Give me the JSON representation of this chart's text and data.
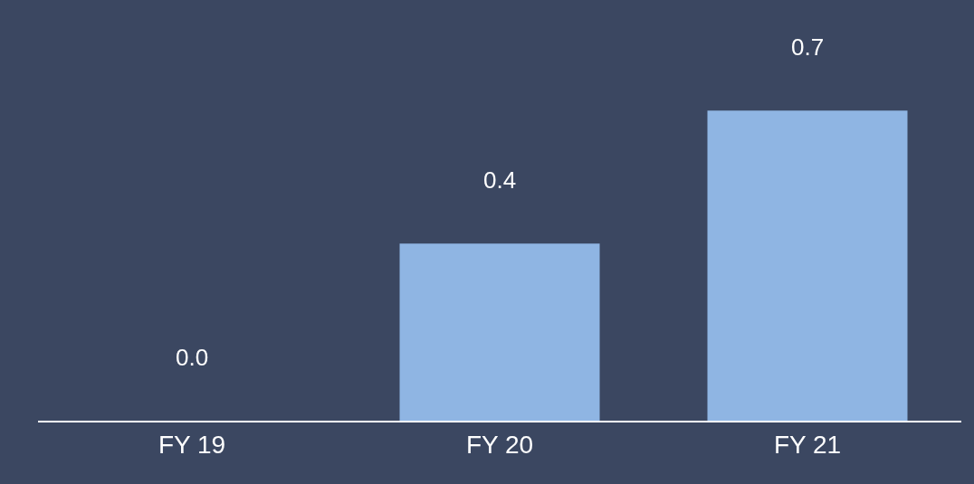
{
  "chart_data": {
    "type": "bar",
    "categories": [
      "FY 19",
      "FY 20",
      "FY 21"
    ],
    "values": [
      0.0,
      0.4,
      0.7
    ],
    "value_labels": [
      "0.0",
      "0.4",
      "0.7"
    ],
    "color": "#8fb5e3",
    "ylim": [
      0,
      0.95
    ],
    "grid": false,
    "legend": false
  }
}
